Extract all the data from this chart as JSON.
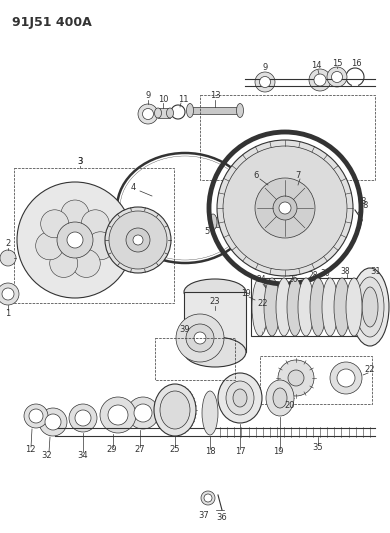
{
  "title": "91J51 400A",
  "bg_color": "#ffffff",
  "line_color": "#333333",
  "title_fontsize": 9,
  "fig_width": 3.9,
  "fig_height": 5.33,
  "dpi": 100
}
